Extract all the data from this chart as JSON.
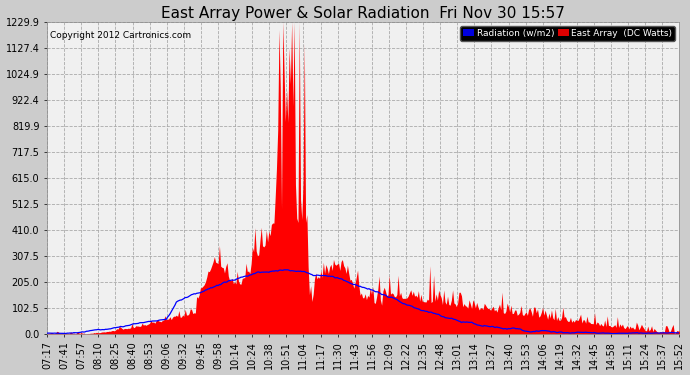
{
  "title": "East Array Power & Solar Radiation  Fri Nov 30 15:57",
  "copyright": "Copyright 2012 Cartronics.com",
  "legend_radiation": "Radiation (w/m2)",
  "legend_east": "East Array  (DC Watts)",
  "legend_radiation_bg": "#0000dd",
  "legend_east_bg": "#dd0000",
  "background_color": "#cccccc",
  "plot_bg": "#f0f0f0",
  "grid_color": "#aaaaaa",
  "y_ticks": [
    0.0,
    102.5,
    205.0,
    307.5,
    410.0,
    512.5,
    615.0,
    717.5,
    819.9,
    922.4,
    1024.9,
    1127.4,
    1229.9
  ],
  "y_max": 1229.9,
  "x_labels": [
    "07:17",
    "07:41",
    "07:57",
    "08:10",
    "08:25",
    "08:40",
    "08:53",
    "09:06",
    "09:32",
    "09:45",
    "09:58",
    "10:14",
    "10:24",
    "10:38",
    "10:51",
    "11:04",
    "11:17",
    "11:30",
    "11:43",
    "11:56",
    "12:09",
    "12:22",
    "12:35",
    "12:48",
    "13:01",
    "13:14",
    "13:27",
    "13:40",
    "13:53",
    "14:06",
    "14:19",
    "14:32",
    "14:45",
    "14:58",
    "15:11",
    "15:24",
    "15:37",
    "15:52"
  ],
  "red_fill_color": "#ff0000",
  "blue_line_color": "#0000ff",
  "title_fontsize": 11,
  "tick_fontsize": 7,
  "copyright_fontsize": 6.5
}
